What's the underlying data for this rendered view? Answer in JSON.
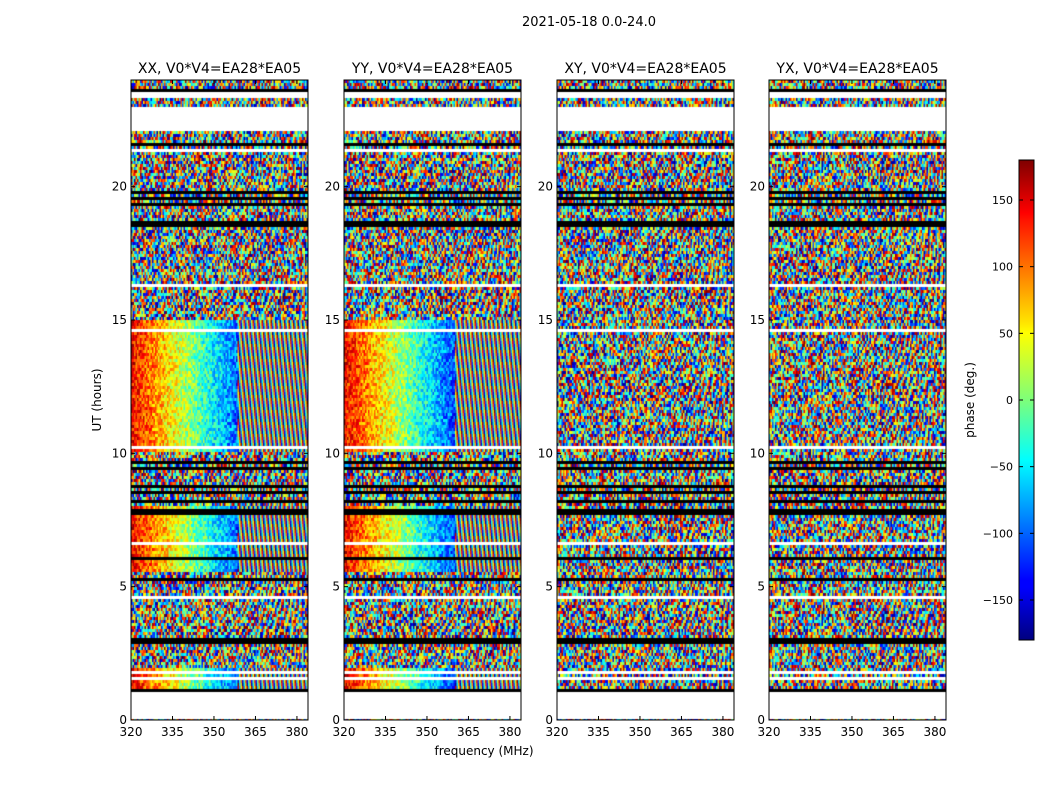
{
  "suptitle": "2021-05-18 0.0-24.0",
  "xlabel": "frequency (MHz)",
  "ylabel": "UT (hours)",
  "colorbar": {
    "label": "phase (deg.)",
    "range": [
      -180,
      180
    ],
    "ticks": [
      -150,
      -100,
      -50,
      0,
      50,
      100,
      150
    ],
    "tick_labels": [
      "−150",
      "−100",
      "−50",
      "0",
      "50",
      "100",
      "150"
    ],
    "colormap": "jet"
  },
  "chart_data": {
    "type": "heatmap",
    "x_range": [
      320,
      384
    ],
    "y_range": [
      0,
      24
    ],
    "x_ticks": [
      320,
      335,
      350,
      365,
      380
    ],
    "y_ticks": [
      0,
      5,
      10,
      15,
      20
    ],
    "panels": [
      {
        "title": "XX, V0*V4=EA28*EA05",
        "pattern": "parallel"
      },
      {
        "title": "YY, V0*V4=EA28*EA05",
        "pattern": "parallel"
      },
      {
        "title": "XY, V0*V4=EA28*EA05",
        "pattern": "cross"
      },
      {
        "title": "YX, V0*V4=EA28*EA05",
        "pattern": "cross"
      }
    ],
    "value_range": [
      -180,
      180
    ],
    "z_label": "phase (deg.)",
    "data_gaps_hours": [
      [
        0.0,
        1.05
      ],
      [
        1.55,
        1.65
      ],
      [
        1.75,
        1.85
      ],
      [
        2.8,
        2.9
      ],
      [
        3.6,
        3.65
      ],
      [
        4.55,
        4.65
      ],
      [
        6.6,
        6.7
      ],
      [
        8.0,
        8.05
      ],
      [
        10.15,
        10.25
      ],
      [
        14.6,
        14.7
      ],
      [
        16.2,
        16.3
      ],
      [
        21.3,
        21.45
      ],
      [
        22.1,
        23.0
      ],
      [
        23.3,
        23.5
      ]
    ],
    "flagged_rows_hours": [
      1.1,
      2.95,
      3.05,
      3.75,
      4.2,
      5.25,
      6.05,
      7.35,
      7.75,
      7.9,
      8.15,
      8.5,
      8.8,
      9.4,
      9.7,
      18.55,
      18.7,
      19.3,
      19.6,
      19.8,
      21.6,
      23.6
    ]
  }
}
